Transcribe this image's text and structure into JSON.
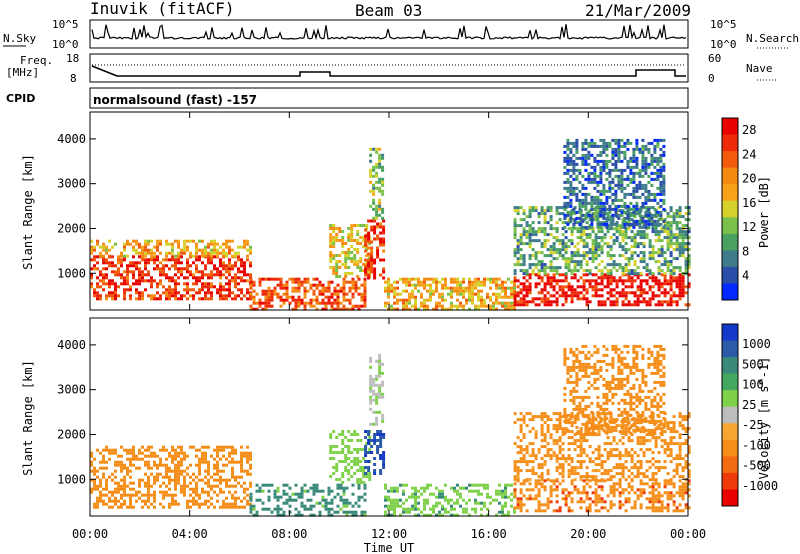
{
  "header": {
    "station": "Inuvik (fitACF)",
    "beam": "Beam 03",
    "date": "21/Mar/2009"
  },
  "top_panels": {
    "nsky_label": "N.Sky",
    "nsky_ticks": [
      "10^5",
      "10^0"
    ],
    "nsearch_label": "N.Search",
    "nsearch_ticks": [
      "10^5",
      "10^0"
    ],
    "freq_label_line1": "Freq.",
    "freq_label_line2": "[MHz]",
    "freq_ticks": [
      "18",
      "8"
    ],
    "nave_label": "Nave",
    "nave_ticks": [
      "60",
      "0"
    ],
    "cpid_label": "CPID",
    "cpid_text": "normalsound (fast) -157"
  },
  "colors": {
    "power_scale": [
      "#0028ff",
      "#2a4da8",
      "#3d7a8a",
      "#4aa060",
      "#7ac04a",
      "#d4d22a",
      "#f7a21a",
      "#f58a10",
      "#f25a0c",
      "#ee2a08",
      "#e80000"
    ],
    "velocity_scale": [
      "#e80000",
      "#ee3a08",
      "#f36b10",
      "#f58e18",
      "#f7a533",
      "#bdbdbd",
      "#7fd14a",
      "#45a860",
      "#3a8a7a",
      "#2a5aa8",
      "#1438c8"
    ]
  },
  "chart_data": [
    {
      "type": "heatmap",
      "title": "Power",
      "xlabel": "Time UT",
      "ylabel": "Slant Range [km]",
      "x_ticks": [
        "00:00",
        "04:00",
        "08:00",
        "12:00",
        "16:00",
        "20:00",
        "00:00"
      ],
      "y_ticks": [
        "1000",
        "2000",
        "3000",
        "4000"
      ],
      "xlim_hours": [
        0,
        24
      ],
      "ylim_km": [
        180,
        4600
      ],
      "colorbar_label": "Power [dB]",
      "colorbar_ticks": [
        "4",
        "8",
        "12",
        "16",
        "20",
        "24",
        "28"
      ],
      "colorbar_range": [
        0,
        30
      ],
      "regions": [
        {
          "t0": 0.0,
          "t1": 6.4,
          "r0": 400,
          "r1": 1400,
          "value": 26
        },
        {
          "t0": 0.0,
          "t1": 6.4,
          "r0": 1400,
          "r1": 1750,
          "value": 18
        },
        {
          "t0": 6.4,
          "t1": 11.0,
          "r0": 200,
          "r1": 900,
          "value": 24
        },
        {
          "t0": 9.6,
          "t1": 11.2,
          "r0": 900,
          "r1": 2100,
          "value": 16
        },
        {
          "t0": 11.0,
          "t1": 11.8,
          "r0": 900,
          "r1": 2200,
          "value": 26
        },
        {
          "t0": 11.8,
          "t1": 17.0,
          "r0": 200,
          "r1": 900,
          "value": 18
        },
        {
          "t0": 17.0,
          "t1": 24.0,
          "r0": 300,
          "r1": 1000,
          "value": 28
        },
        {
          "t0": 17.0,
          "t1": 24.0,
          "r0": 1000,
          "r1": 2500,
          "value": 10
        },
        {
          "t0": 11.2,
          "t1": 11.8,
          "r0": 2200,
          "r1": 3800,
          "value": 12
        },
        {
          "t0": 19.0,
          "t1": 23.0,
          "r0": 2000,
          "r1": 4000,
          "value": 6
        }
      ]
    },
    {
      "type": "heatmap",
      "title": "Velocity",
      "xlabel": "Time UT",
      "ylabel": "Slant Range [km]",
      "x_ticks": [
        "00:00",
        "04:00",
        "08:00",
        "12:00",
        "16:00",
        "20:00",
        "00:00"
      ],
      "y_ticks": [
        "1000",
        "2000",
        "3000",
        "4000"
      ],
      "xlim_hours": [
        0,
        24
      ],
      "ylim_km": [
        180,
        4600
      ],
      "colorbar_label": "Velocity [m s^-1]",
      "colorbar_ticks": [
        "1000",
        "500",
        "100",
        "25",
        "-25",
        "-100",
        "-500",
        "-1000"
      ],
      "regions": [
        {
          "t0": 0.0,
          "t1": 6.4,
          "r0": 400,
          "r1": 1750,
          "value": -300
        },
        {
          "t0": 6.4,
          "t1": 11.0,
          "r0": 200,
          "r1": 900,
          "value": 150
        },
        {
          "t0": 9.6,
          "t1": 11.2,
          "r0": 900,
          "r1": 2100,
          "value": 60
        },
        {
          "t0": 11.0,
          "t1": 11.8,
          "r0": 1100,
          "r1": 2100,
          "value": 900
        },
        {
          "t0": 11.8,
          "t1": 17.0,
          "r0": 200,
          "r1": 900,
          "value": 80
        },
        {
          "t0": 17.0,
          "t1": 24.0,
          "r0": 300,
          "r1": 1000,
          "value": -400
        },
        {
          "t0": 17.0,
          "t1": 24.0,
          "r0": 1000,
          "r1": 2500,
          "value": -150
        },
        {
          "t0": 11.2,
          "t1": 11.8,
          "r0": 2200,
          "r1": 3800,
          "value": 20
        },
        {
          "t0": 19.0,
          "t1": 23.0,
          "r0": 2000,
          "r1": 4000,
          "value": -200
        }
      ]
    }
  ]
}
